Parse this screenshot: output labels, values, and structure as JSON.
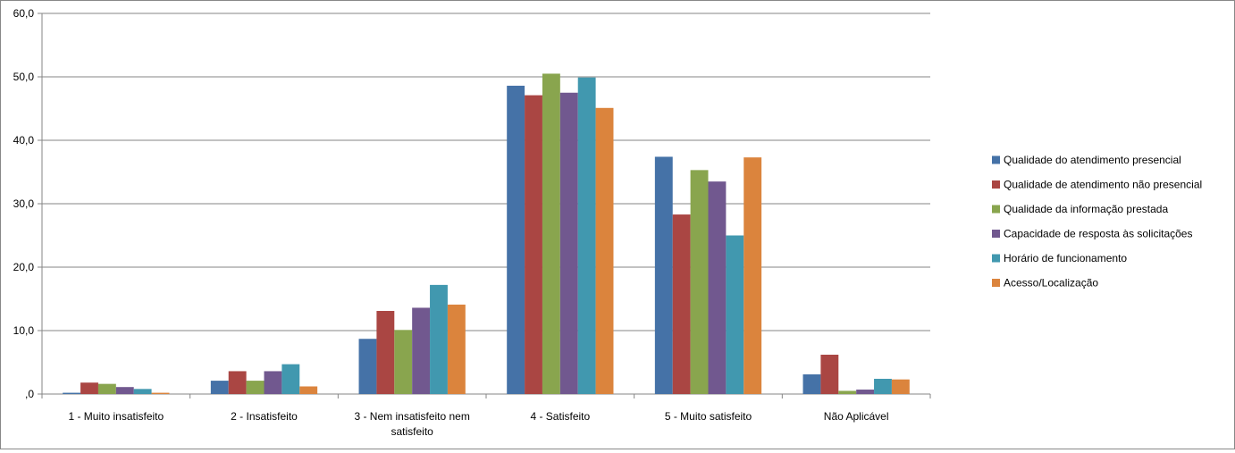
{
  "chart_data": {
    "type": "bar",
    "categories": [
      "1 - Muito insatisfeito",
      "2 - Insatisfeito",
      "3 - Nem insatisfeito nem satisfeito",
      "4 - Satisfeito",
      "5 - Muito satisfeito",
      "Não Aplicável"
    ],
    "category_lines": [
      [
        "1 - Muito insatisfeito"
      ],
      [
        "2 - Insatisfeito"
      ],
      [
        "3 - Nem insatisfeito nem",
        "satisfeito"
      ],
      [
        "4 - Satisfeito"
      ],
      [
        "5 - Muito satisfeito"
      ],
      [
        "Não Aplicável"
      ]
    ],
    "series": [
      {
        "name": "Qualidade do atendimento presencial",
        "color": "#4572A7",
        "values": [
          0.2,
          2.1,
          8.7,
          48.6,
          37.4,
          3.1
        ]
      },
      {
        "name": "Qualidade de atendimento não presencial",
        "color": "#AA4643",
        "values": [
          1.8,
          3.6,
          13.1,
          47.1,
          28.3,
          6.2
        ]
      },
      {
        "name": "Qualidade da informação prestada",
        "color": "#89A54E",
        "values": [
          1.6,
          2.1,
          10.1,
          50.5,
          35.3,
          0.5
        ]
      },
      {
        "name": "Capacidade de resposta às solicitações",
        "color": "#71588F",
        "values": [
          1.1,
          3.6,
          13.6,
          47.5,
          33.5,
          0.7
        ]
      },
      {
        "name": "Horário de funcionamento",
        "color": "#4198AF",
        "values": [
          0.8,
          4.7,
          17.2,
          49.9,
          25.0,
          2.4
        ]
      },
      {
        "name": "Acesso/Localização",
        "color": "#DB843D",
        "values": [
          0.2,
          1.2,
          14.1,
          45.1,
          37.3,
          2.3
        ]
      }
    ],
    "ylim": [
      0,
      60
    ],
    "yticks": [
      0,
      10,
      20,
      30,
      40,
      50,
      60
    ],
    "ytick_labels": [
      ",0",
      "10,0",
      "20,0",
      "30,0",
      "40,0",
      "50,0",
      "60,0"
    ],
    "grid": true,
    "legend_position": "right",
    "title": "",
    "xlabel": "",
    "ylabel": ""
  }
}
